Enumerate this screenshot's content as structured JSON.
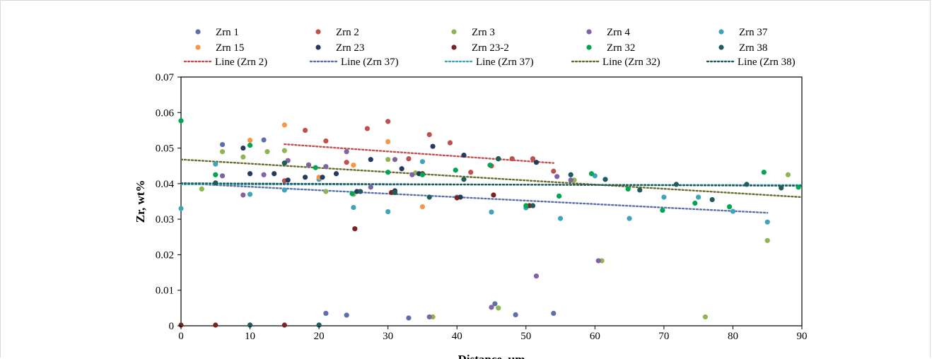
{
  "chart_data": {
    "type": "scatter",
    "xlabel": "Distance, µm",
    "ylabel": "Zr, wt%",
    "xlim": [
      0,
      90
    ],
    "ylim": [
      0,
      0.07
    ],
    "xticks": [
      "0",
      "10",
      "20",
      "30",
      "40",
      "50",
      "60",
      "70",
      "80",
      "90"
    ],
    "yticks": [
      "0",
      "0.01",
      "0.02",
      "0.03",
      "0.04",
      "0.05",
      "0.06",
      "0.07"
    ],
    "grid": false,
    "legend_position": "top",
    "series": [
      {
        "name": "Zrn 1",
        "color": "#5b6fae",
        "points": [
          [
            6,
            0.051
          ],
          [
            12,
            0.0523
          ],
          [
            21,
            0.0035
          ],
          [
            24,
            0.003
          ],
          [
            33,
            0.0022
          ],
          [
            45.5,
            0.0062
          ],
          [
            48.5,
            0.0031
          ],
          [
            54,
            0.0035
          ]
        ]
      },
      {
        "name": "Zrn 2",
        "color": "#c0504d",
        "points": [
          [
            18,
            0.055
          ],
          [
            21,
            0.052
          ],
          [
            27,
            0.0555
          ],
          [
            30,
            0.0575
          ],
          [
            33,
            0.047
          ],
          [
            36,
            0.0538
          ],
          [
            39,
            0.0515
          ],
          [
            42,
            0.0432
          ],
          [
            45,
            0.045
          ],
          [
            48,
            0.047
          ],
          [
            51,
            0.047
          ],
          [
            54,
            0.0435
          ],
          [
            15,
            0.0408
          ],
          [
            24,
            0.046
          ]
        ]
      },
      {
        "name": "Zrn 3",
        "color": "#8db554",
        "points": [
          [
            3,
            0.0385
          ],
          [
            6,
            0.049
          ],
          [
            9,
            0.0475
          ],
          [
            12.5,
            0.049
          ],
          [
            15,
            0.0493
          ],
          [
            18.5,
            0.0453
          ],
          [
            21,
            0.0378
          ],
          [
            25,
            0.037
          ],
          [
            30,
            0.0468
          ],
          [
            34,
            0.043
          ],
          [
            36.5,
            0.0025
          ],
          [
            46,
            0.005
          ],
          [
            57,
            0.041
          ],
          [
            61,
            0.0183
          ],
          [
            76,
            0.0025
          ],
          [
            85,
            0.024
          ],
          [
            88,
            0.0425
          ]
        ]
      },
      {
        "name": "Zrn 4",
        "color": "#8064a2",
        "points": [
          [
            6,
            0.0422
          ],
          [
            9,
            0.0368
          ],
          [
            12,
            0.0425
          ],
          [
            15.5,
            0.0465
          ],
          [
            18.5,
            0.0452
          ],
          [
            21,
            0.0448
          ],
          [
            24,
            0.049
          ],
          [
            27.5,
            0.039
          ],
          [
            31,
            0.0468
          ],
          [
            33.5,
            0.0425
          ],
          [
            36,
            0.0025
          ],
          [
            45,
            0.0052
          ],
          [
            51.5,
            0.014
          ],
          [
            54.5,
            0.042
          ],
          [
            56.5,
            0.041
          ],
          [
            60.5,
            0.0183
          ]
        ]
      },
      {
        "name": "Zrn 37",
        "color": "#3fa4ba",
        "points": [
          [
            0,
            0.033
          ],
          [
            5,
            0.0455
          ],
          [
            10,
            0.037
          ],
          [
            15,
            0.0382
          ],
          [
            20,
            0.0412
          ],
          [
            25,
            0.0333
          ],
          [
            30,
            0.0321
          ],
          [
            35,
            0.0462
          ],
          [
            40,
            0.0362
          ],
          [
            45,
            0.032
          ],
          [
            50,
            0.0332
          ],
          [
            55,
            0.0302
          ],
          [
            60,
            0.0422
          ],
          [
            65,
            0.0302
          ],
          [
            70,
            0.0362
          ],
          [
            75,
            0.0362
          ],
          [
            80,
            0.0322
          ],
          [
            85,
            0.0292
          ]
        ]
      },
      {
        "name": "Zrn 15",
        "color": "#f79646",
        "points": [
          [
            10,
            0.0522
          ],
          [
            15,
            0.0565
          ],
          [
            20,
            0.0418
          ],
          [
            25,
            0.0452
          ],
          [
            30,
            0.0518
          ],
          [
            35,
            0.0335
          ]
        ]
      },
      {
        "name": "Zrn 23",
        "color": "#243a5e",
        "points": [
          [
            9,
            0.05
          ],
          [
            10,
            0.0428
          ],
          [
            13.5,
            0.0428
          ],
          [
            15.5,
            0.041
          ],
          [
            18,
            0.0418
          ],
          [
            20.5,
            0.0418
          ],
          [
            22.5,
            0.0428
          ],
          [
            25.5,
            0.0378
          ],
          [
            27.5,
            0.0468
          ],
          [
            31,
            0.038
          ],
          [
            32,
            0.0442
          ],
          [
            34.5,
            0.0428
          ],
          [
            36.5,
            0.0505
          ],
          [
            40.5,
            0.0362
          ],
          [
            41,
            0.048
          ],
          [
            46,
            0.047
          ],
          [
            51.5,
            0.046
          ]
        ]
      },
      {
        "name": "Zrn 23-2",
        "color": "#7b2323",
        "points": [
          [
            0,
            0.0002
          ],
          [
            5,
            0.0002
          ],
          [
            10,
            0.0002
          ],
          [
            15,
            0.0002
          ],
          [
            20,
            0.0002
          ],
          [
            25.2,
            0.0273
          ],
          [
            30.5,
            0.0375
          ],
          [
            35,
            0.0428
          ],
          [
            40,
            0.036
          ],
          [
            45.3,
            0.0368
          ],
          [
            50.5,
            0.0338
          ]
        ]
      },
      {
        "name": "Zrn 32",
        "color": "#00a651",
        "points": [
          [
            0,
            0.0577
          ],
          [
            5,
            0.0425
          ],
          [
            10,
            0.0508
          ],
          [
            15,
            0.0458
          ],
          [
            19.5,
            0.0445
          ],
          [
            24.8,
            0.0372
          ],
          [
            30,
            0.0432
          ],
          [
            35,
            0.0425
          ],
          [
            39.8,
            0.0438
          ],
          [
            44.8,
            0.0452
          ],
          [
            50,
            0.0338
          ],
          [
            54.8,
            0.0365
          ],
          [
            59.5,
            0.0428
          ],
          [
            64.8,
            0.0385
          ],
          [
            69.8,
            0.0325
          ],
          [
            74.5,
            0.0345
          ],
          [
            79.5,
            0.0335
          ],
          [
            84.5,
            0.0432
          ],
          [
            89.5,
            0.039
          ]
        ]
      },
      {
        "name": "Zrn 38",
        "color": "#1f5c5c",
        "points": [
          [
            5,
            0.0402
          ],
          [
            10,
            0.0002
          ],
          [
            15,
            0.0458
          ],
          [
            20,
            0.0002
          ],
          [
            26,
            0.0378
          ],
          [
            31,
            0.0375
          ],
          [
            36,
            0.0362
          ],
          [
            41,
            0.0412
          ],
          [
            46,
            0.047
          ],
          [
            51,
            0.0338
          ],
          [
            56.5,
            0.0425
          ],
          [
            61.5,
            0.0412
          ],
          [
            66.5,
            0.0382
          ],
          [
            71.8,
            0.0398
          ],
          [
            77,
            0.0355
          ],
          [
            82,
            0.0398
          ],
          [
            87,
            0.0388
          ]
        ]
      }
    ],
    "trendlines": [
      {
        "name": "Line (Zrn 2)",
        "color": "#c0504d",
        "x": [
          15,
          54
        ],
        "y": [
          0.0511,
          0.0458
        ]
      },
      {
        "name": "Line (Zrn 37)",
        "color": "#5b6fae",
        "x": [
          0,
          85
        ],
        "y": [
          0.0401,
          0.0318
        ]
      },
      {
        "name": "Line (Zrn 37)",
        "color": "#3fa4ba",
        "x": [
          0,
          90
        ],
        "y": [
          0.0398,
          0.0396
        ]
      },
      {
        "name": "Line (Zrn 32)",
        "color": "#6b6b2a",
        "x": [
          0,
          90
        ],
        "y": [
          0.0468,
          0.0362
        ]
      },
      {
        "name": "Line (Zrn 38)",
        "color": "#1f5c5c",
        "x": [
          0,
          90
        ],
        "y": [
          0.0401,
          0.0394
        ]
      }
    ]
  }
}
